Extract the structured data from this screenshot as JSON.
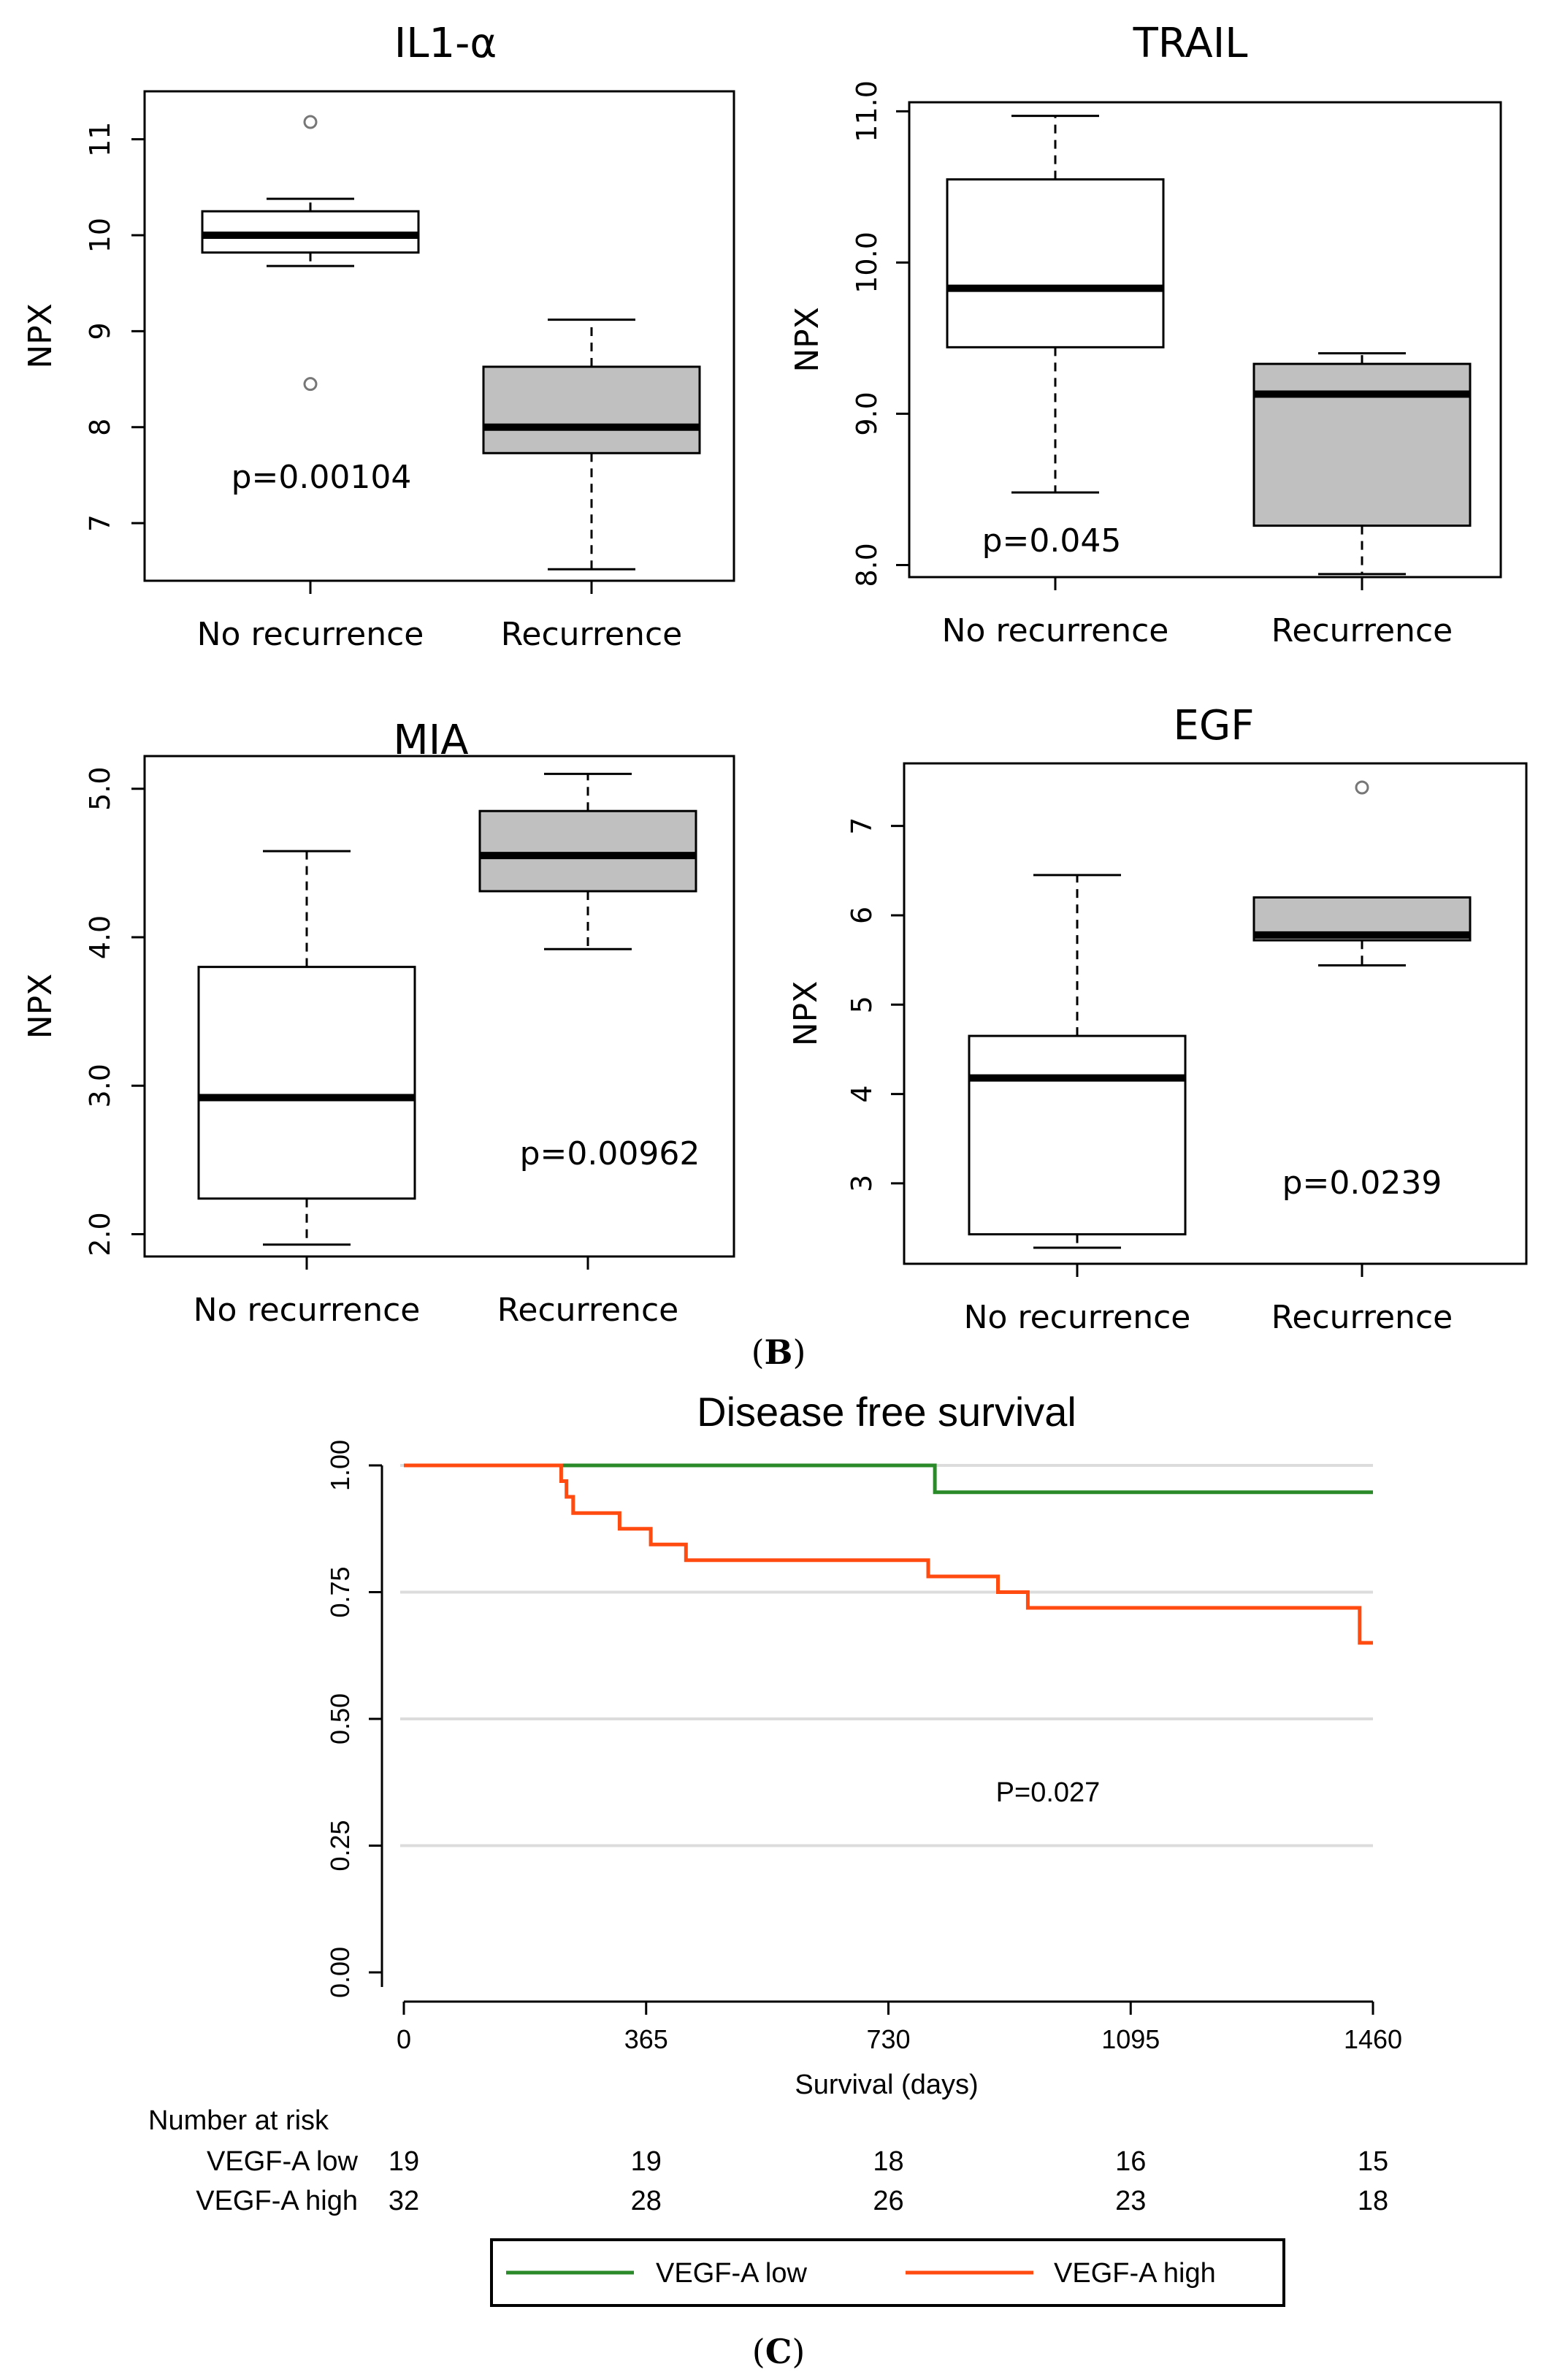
{
  "figure": {
    "panel_b_label": "B",
    "panel_c_label": "C"
  },
  "chart_data": [
    {
      "type": "box",
      "title": "IL1-α",
      "ylabel": "NPX",
      "categories": [
        "No recurrence",
        "Recurrence"
      ],
      "ylim": [
        6.4,
        11.5
      ],
      "yticks": [
        7,
        8,
        9,
        10,
        11
      ],
      "ytick_labels": [
        "7",
        "8",
        "9",
        "10",
        "11"
      ],
      "boxes": [
        {
          "group": "No recurrence",
          "min": 9.68,
          "q1": 9.82,
          "median": 10.0,
          "q3": 10.25,
          "max": 10.38,
          "outliers": [
            11.18,
            8.45
          ],
          "fill": "#ffffff"
        },
        {
          "group": "Recurrence",
          "min": 6.52,
          "q1": 7.73,
          "median": 8.0,
          "q3": 8.63,
          "max": 9.12,
          "outliers": [],
          "fill": "#c0c0c0"
        }
      ],
      "annotation": "p=0.00104"
    },
    {
      "type": "box",
      "title": "TRAIL",
      "ylabel": "NPX",
      "categories": [
        "No recurrence",
        "Recurrence"
      ],
      "ylim": [
        7.92,
        11.06
      ],
      "yticks": [
        8.0,
        9.0,
        10.0,
        11.0
      ],
      "ytick_labels": [
        "8.0",
        "9.0",
        "10.0",
        "11.0"
      ],
      "boxes": [
        {
          "group": "No recurrence",
          "min": 8.48,
          "q1": 9.44,
          "median": 9.83,
          "q3": 10.55,
          "max": 10.97,
          "outliers": [],
          "fill": "#ffffff"
        },
        {
          "group": "Recurrence",
          "min": 7.94,
          "q1": 8.26,
          "median": 9.13,
          "q3": 9.33,
          "max": 9.4,
          "outliers": [],
          "fill": "#c0c0c0"
        }
      ],
      "annotation": "p=0.045"
    },
    {
      "type": "box",
      "title": "MIA",
      "ylabel": "NPX",
      "categories": [
        "No recurrence",
        "Recurrence"
      ],
      "ylim": [
        1.85,
        5.22
      ],
      "yticks": [
        2.0,
        3.0,
        4.0,
        5.0
      ],
      "ytick_labels": [
        "2.0",
        "3.0",
        "4.0",
        "5.0"
      ],
      "boxes": [
        {
          "group": "No recurrence",
          "min": 1.93,
          "q1": 2.24,
          "median": 2.92,
          "q3": 3.8,
          "max": 4.58,
          "outliers": [],
          "fill": "#ffffff"
        },
        {
          "group": "Recurrence",
          "min": 3.92,
          "q1": 4.31,
          "median": 4.55,
          "q3": 4.85,
          "max": 5.1,
          "outliers": [],
          "fill": "#c0c0c0"
        }
      ],
      "annotation": "p=0.00962"
    },
    {
      "type": "box",
      "title": "EGF",
      "ylabel": "NPX",
      "categories": [
        "No recurrence",
        "Recurrence"
      ],
      "ylim": [
        2.1,
        7.7
      ],
      "yticks": [
        3,
        4,
        5,
        6,
        7
      ],
      "ytick_labels": [
        "3",
        "4",
        "5",
        "6",
        "7"
      ],
      "boxes": [
        {
          "group": "No recurrence",
          "min": 2.28,
          "q1": 2.43,
          "median": 4.18,
          "q3": 4.65,
          "max": 6.45,
          "outliers": [],
          "fill": "#ffffff"
        },
        {
          "group": "Recurrence",
          "min": 5.44,
          "q1": 5.72,
          "median": 5.78,
          "q3": 6.2,
          "max": 6.2,
          "outliers": [
            7.43
          ],
          "fill": "#c0c0c0"
        }
      ],
      "annotation": "p=0.0239"
    },
    {
      "type": "line",
      "subtype": "kaplan-meier",
      "title": "Disease free survival",
      "xlabel": "Survival (days)",
      "xlim": [
        0,
        1460
      ],
      "xticks": [
        0,
        365,
        730,
        1095,
        1460
      ],
      "xtick_labels": [
        "0",
        "365",
        "730",
        "1095",
        "1460"
      ],
      "ylim": [
        0,
        1
      ],
      "yticks": [
        0,
        0.25,
        0.5,
        0.75,
        1.0
      ],
      "ytick_labels": [
        "0.00",
        "0.25",
        "0.50",
        "0.75",
        "1.00"
      ],
      "annotation": "P=0.027",
      "series": [
        {
          "name": "VEGF-A low",
          "color": "#2a8a2a",
          "steps": [
            [
              0,
              1.0
            ],
            [
              800,
              1.0
            ],
            [
              800,
              0.947
            ],
            [
              1460,
              0.947
            ]
          ]
        },
        {
          "name": "VEGF-A high",
          "color": "#ff4a10",
          "steps": [
            [
              0,
              1.0
            ],
            [
              237,
              1.0
            ],
            [
              237,
              0.969
            ],
            [
              245,
              0.969
            ],
            [
              245,
              0.938
            ],
            [
              255,
              0.938
            ],
            [
              255,
              0.906
            ],
            [
              325,
              0.906
            ],
            [
              325,
              0.875
            ],
            [
              372,
              0.875
            ],
            [
              372,
              0.844
            ],
            [
              425,
              0.844
            ],
            [
              425,
              0.813
            ],
            [
              790,
              0.813
            ],
            [
              790,
              0.781
            ],
            [
              895,
              0.781
            ],
            [
              895,
              0.75
            ],
            [
              940,
              0.75
            ],
            [
              940,
              0.719
            ],
            [
              1440,
              0.719
            ],
            [
              1440,
              0.65
            ],
            [
              1460,
              0.65
            ]
          ]
        }
      ],
      "risk_table": {
        "title": "Number at risk",
        "rows": [
          {
            "label": "VEGF-A low",
            "values": [
              "19",
              "19",
              "18",
              "16",
              "15"
            ]
          },
          {
            "label": "VEGF-A high",
            "values": [
              "32",
              "28",
              "26",
              "23",
              "18"
            ]
          }
        ]
      },
      "legend": [
        "VEGF-A low",
        "VEGF-A high"
      ]
    }
  ]
}
